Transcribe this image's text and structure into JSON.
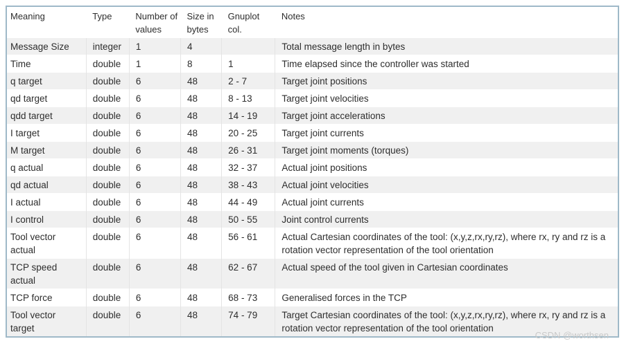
{
  "table": {
    "columns": [
      {
        "key": "meaning",
        "label": "Meaning"
      },
      {
        "key": "type",
        "label": "Type"
      },
      {
        "key": "num_values",
        "label": "Number of values"
      },
      {
        "key": "size_bytes",
        "label": "Size in bytes"
      },
      {
        "key": "gnuplot",
        "label": "Gnuplot col."
      },
      {
        "key": "notes",
        "label": "Notes"
      }
    ],
    "rows": [
      {
        "meaning": "Message Size",
        "type": "integer",
        "num_values": "1",
        "size_bytes": "4",
        "gnuplot": "",
        "notes": "Total message length in bytes"
      },
      {
        "meaning": "Time",
        "type": "double",
        "num_values": "1",
        "size_bytes": "8",
        "gnuplot": "1",
        "notes": "Time elapsed since the controller was started"
      },
      {
        "meaning": "q target",
        "type": "double",
        "num_values": "6",
        "size_bytes": "48",
        "gnuplot": "2 - 7",
        "notes": "Target joint positions"
      },
      {
        "meaning": "qd target",
        "type": "double",
        "num_values": "6",
        "size_bytes": "48",
        "gnuplot": "8 - 13",
        "notes": "Target joint velocities"
      },
      {
        "meaning": "qdd target",
        "type": "double",
        "num_values": "6",
        "size_bytes": "48",
        "gnuplot": "14 - 19",
        "notes": "Target joint accelerations"
      },
      {
        "meaning": "I target",
        "type": "double",
        "num_values": "6",
        "size_bytes": "48",
        "gnuplot": "20 - 25",
        "notes": "Target joint currents"
      },
      {
        "meaning": "M target",
        "type": "double",
        "num_values": "6",
        "size_bytes": "48",
        "gnuplot": "26 - 31",
        "notes": "Target joint moments (torques)"
      },
      {
        "meaning": "q actual",
        "type": "double",
        "num_values": "6",
        "size_bytes": "48",
        "gnuplot": "32 - 37",
        "notes": "Actual joint positions"
      },
      {
        "meaning": "qd actual",
        "type": "double",
        "num_values": "6",
        "size_bytes": "48",
        "gnuplot": "38 - 43",
        "notes": "Actual joint velocities"
      },
      {
        "meaning": "I actual",
        "type": "double",
        "num_values": "6",
        "size_bytes": "48",
        "gnuplot": "44 - 49",
        "notes": "Actual joint currents"
      },
      {
        "meaning": "I control",
        "type": "double",
        "num_values": "6",
        "size_bytes": "48",
        "gnuplot": "50 - 55",
        "notes": "Joint control currents"
      },
      {
        "meaning": "Tool vector actual",
        "type": "double",
        "num_values": "6",
        "size_bytes": "48",
        "gnuplot": "56 - 61",
        "notes": "Actual Cartesian coordinates of the tool: (x,y,z,rx,ry,rz), where rx, ry and rz is a rotation vector representation of the tool orientation"
      },
      {
        "meaning": "TCP speed actual",
        "type": "double",
        "num_values": "6",
        "size_bytes": "48",
        "gnuplot": "62 - 67",
        "notes": "Actual speed of the tool given in Cartesian coordinates"
      },
      {
        "meaning": "TCP force",
        "type": "double",
        "num_values": "6",
        "size_bytes": "48",
        "gnuplot": "68 - 73",
        "notes": "Generalised forces in the TCP"
      },
      {
        "meaning": "Tool vector target",
        "type": "double",
        "num_values": "6",
        "size_bytes": "48",
        "gnuplot": "74 - 79",
        "notes": "Target Cartesian coordinates of the tool: (x,y,z,rx,ry,rz), where rx, ry and rz is a rotation vector representation of the tool orientation"
      }
    ]
  },
  "watermark": "CSDN @worthsen",
  "colors": {
    "table_border": "#9fb9c8",
    "row_stripe": "#f0f0f0",
    "cell_separator": "#e4e4e4",
    "text": "#2d2d2d",
    "watermark_text": "#c9c9c9"
  }
}
